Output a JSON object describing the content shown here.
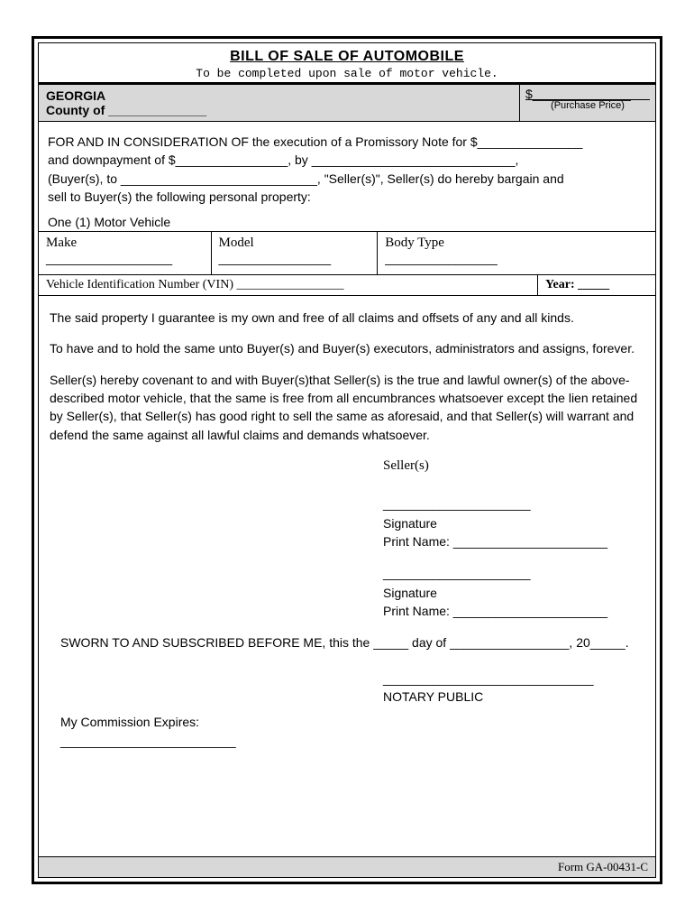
{
  "title": "BILL OF SALE OF AUTOMOBILE",
  "subtitle": "To be completed upon sale of motor vehicle.",
  "header": {
    "state": "GEORGIA",
    "county_label": "County of ______________",
    "price_symbol": "$______________",
    "price_label": "(Purchase Price)"
  },
  "consideration": {
    "line1": "FOR AND IN CONSIDERATION OF the execution of a Promissory Note for $_______________",
    "line2": "and  downpayment of $________________, by _____________________________,",
    "line3": "(Buyer(s), to ____________________________, \"Seller(s)\", Seller(s) do hereby bargain and",
    "line4": "sell to Buyer(s) the following personal property:"
  },
  "vehicle": {
    "count_label": "One (1) Motor Vehicle",
    "make_label": "Make",
    "make_blank": "__________________",
    "model_label": "Model",
    "model_blank": "________________",
    "body_label": "Body Type",
    "body_blank": "________________",
    "vin_label": "Vehicle Identification Number (VIN) _________________",
    "year_label": "Year: _____"
  },
  "guarantee": {
    "p1": "The said property I guarantee is my own and free of all claims and offsets of any and all kinds.",
    "p2": "To have and to hold the same unto Buyer(s) and Buyer(s) executors, administrators and assigns, forever.",
    "p3": "Seller(s) hereby covenant to and with Buyer(s)that Seller(s) is the true and lawful owner(s) of the above-described motor vehicle, that the same is free from all encumbrances whatsoever except the lien retained by Seller(s), that Seller(s) has good right to sell the same as aforesaid, and that Seller(s) will warrant and defend the same against all lawful claims and demands whatsoever."
  },
  "sellers": {
    "heading": "Seller(s)",
    "sig_line": "_____________________",
    "signature_label": "Signature",
    "print_name": "Print Name: ______________________"
  },
  "sworn": "SWORN TO AND SUBSCRIBED BEFORE ME, this the _____ day of _________________, 20_____.",
  "notary": {
    "line": "______________________________",
    "label": "NOTARY PUBLIC"
  },
  "commission": {
    "label": "My Commission Expires:",
    "line": "_________________________"
  },
  "footer": "Form GA-00431-C",
  "colors": {
    "header_bg": "#d8d8d8",
    "border": "#000000",
    "text": "#000000",
    "page_bg": "#ffffff"
  }
}
